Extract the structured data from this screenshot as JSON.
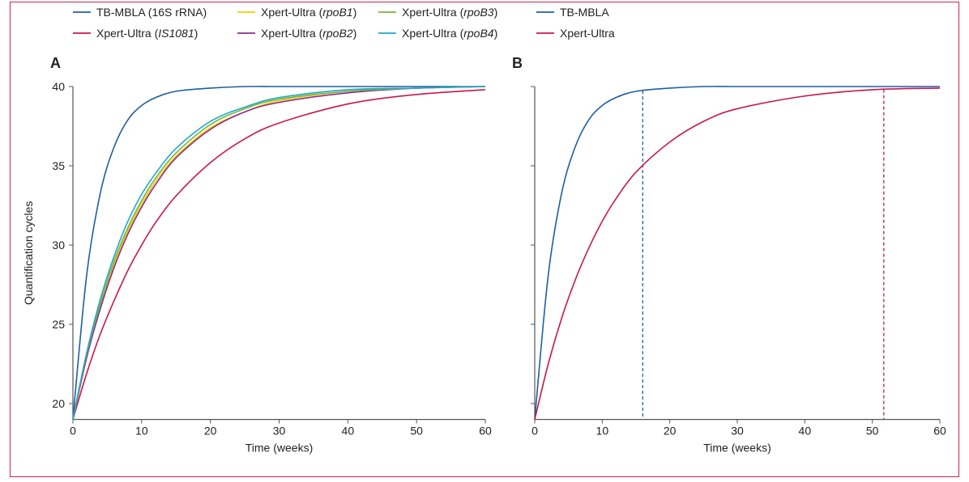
{
  "chart_data": [
    {
      "type": "line",
      "panel_label": "A",
      "xlabel": "Time (weeks)",
      "ylabel": "Quantification cycles",
      "xlim": [
        0,
        60
      ],
      "ylim": [
        19,
        40
      ],
      "xticks": [
        0,
        10,
        20,
        30,
        40,
        50,
        60
      ],
      "yticks": [
        20,
        25,
        30,
        35,
        40
      ],
      "x": [
        0,
        2,
        4,
        6,
        8,
        10,
        12,
        15,
        20,
        25,
        30,
        40,
        50,
        60
      ],
      "series": [
        {
          "name": "TB-MBLA (16S rRNA)",
          "color": "#1f5fa0",
          "values": [
            19,
            28.1,
            33.3,
            36.2,
            37.9,
            38.8,
            39.3,
            39.7,
            39.9,
            40,
            40,
            40,
            40,
            40
          ]
        },
        {
          "name": "Xpert-Ultra (IS1081)",
          "color": "#c8174a",
          "values": [
            19,
            21.9,
            24.4,
            26.5,
            28.4,
            30.0,
            31.4,
            33.1,
            35.2,
            36.7,
            37.7,
            38.9,
            39.5,
            39.8
          ]
        },
        {
          "name": "Xpert-Ultra (rpoB1)",
          "color": "#f5d000",
          "values": [
            19,
            22.9,
            26.2,
            28.8,
            30.9,
            32.6,
            34.0,
            35.6,
            37.4,
            38.4,
            39.1,
            39.7,
            39.9,
            40
          ]
        },
        {
          "name": "Xpert-Ultra (rpoB2)",
          "color": "#8e2a8f",
          "values": [
            19,
            22.9,
            26.0,
            28.6,
            30.7,
            32.4,
            33.8,
            35.5,
            37.3,
            38.4,
            39.0,
            39.6,
            39.9,
            40
          ]
        },
        {
          "name": "Xpert-Ultra (rpoB3)",
          "color": "#74b444",
          "values": [
            19,
            23.1,
            26.3,
            29.0,
            31.1,
            32.8,
            34.2,
            35.8,
            37.6,
            38.6,
            39.2,
            39.7,
            39.9,
            40
          ]
        },
        {
          "name": "Xpert-Ultra (rpoB4)",
          "color": "#1fa8c8",
          "values": [
            19,
            23.2,
            26.6,
            29.3,
            31.5,
            33.2,
            34.5,
            36.1,
            37.8,
            38.7,
            39.3,
            39.8,
            39.9,
            40
          ]
        }
      ]
    },
    {
      "type": "line",
      "panel_label": "B",
      "xlabel": "Time (weeks)",
      "xlim": [
        0,
        60
      ],
      "ylim": [
        19,
        40
      ],
      "xticks": [
        0,
        10,
        20,
        30,
        40,
        50,
        60
      ],
      "x": [
        0,
        2,
        4,
        6,
        8,
        10,
        12,
        15,
        20,
        25,
        30,
        40,
        50,
        60
      ],
      "series": [
        {
          "name": "TB-MBLA",
          "color": "#1f5fa0",
          "values": [
            19,
            28.1,
            33.3,
            36.2,
            37.9,
            38.8,
            39.3,
            39.7,
            39.9,
            40,
            40,
            40,
            40,
            40
          ],
          "dashed_marker_x": 16
        },
        {
          "name": "Xpert-Ultra",
          "color": "#c8174a",
          "values": [
            19,
            22.5,
            25.4,
            27.8,
            29.8,
            31.5,
            32.9,
            34.6,
            36.5,
            37.8,
            38.6,
            39.4,
            39.8,
            39.9
          ],
          "dashed_marker_x": 51.7
        }
      ]
    }
  ],
  "legend": {
    "a": [
      {
        "pre": "TB-MBLA (16S rRNA)",
        "it": "",
        "post": "",
        "color": "#1f5fa0"
      },
      {
        "pre": "Xpert-Ultra (",
        "it": "IS1081",
        "post": ")",
        "color": "#c8174a"
      },
      {
        "pre": "Xpert-Ultra (",
        "it": "rpoB1",
        "post": ")",
        "color": "#f5d000"
      },
      {
        "pre": "Xpert-Ultra (",
        "it": "rpoB2",
        "post": ")",
        "color": "#8e2a8f"
      },
      {
        "pre": "Xpert-Ultra (",
        "it": "rpoB3",
        "post": ")",
        "color": "#74b444"
      },
      {
        "pre": "Xpert-Ultra (",
        "it": "rpoB4",
        "post": ")",
        "color": "#1fa8c8"
      }
    ],
    "b": [
      {
        "pre": "TB-MBLA",
        "it": "",
        "post": "",
        "color": "#1f5fa0"
      },
      {
        "pre": "Xpert-Ultra",
        "it": "",
        "post": "",
        "color": "#c8174a"
      }
    ]
  }
}
